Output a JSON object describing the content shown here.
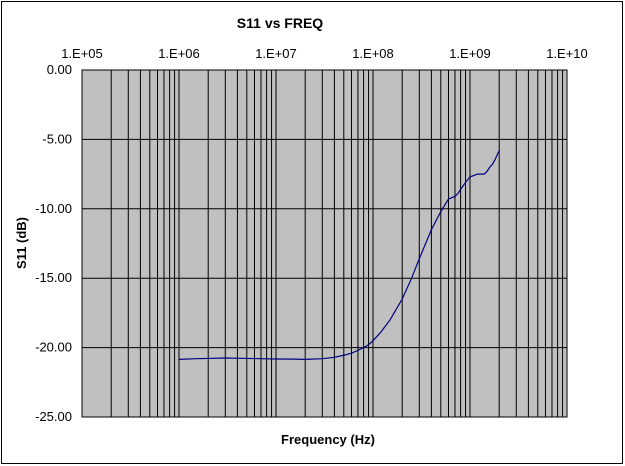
{
  "chart_data": {
    "type": "line",
    "title": "S11 vs FREQ",
    "xlabel": "Frequency (Hz)",
    "ylabel": "S11 (dB)",
    "x_scale": "log",
    "xlim": [
      100000,
      10000000000
    ],
    "ylim": [
      -25,
      0
    ],
    "x_tick_labels": [
      "1.E+05",
      "1.E+06",
      "1.E+07",
      "1.E+08",
      "1.E+09",
      "1.E+10"
    ],
    "y_tick_labels": [
      "0.00",
      "-5.00",
      "-10.00",
      "-15.00",
      "-20.00",
      "-25.00"
    ],
    "x_ticks": [
      100000,
      1000000,
      10000000,
      100000000,
      1000000000,
      10000000000
    ],
    "y_ticks": [
      0,
      -5,
      -10,
      -15,
      -20,
      -25
    ],
    "grid": true,
    "x_axis_position": "top",
    "plot_background": "#c0c0c0",
    "series": [
      {
        "color": "#000080",
        "x": [
          1000000,
          1500000,
          2000000,
          3000000,
          5000000,
          7000000,
          10000000,
          15000000,
          20000000,
          30000000,
          40000000,
          50000000,
          60000000,
          70000000,
          80000000,
          90000000,
          100000000,
          120000000,
          150000000,
          200000000,
          250000000,
          300000000,
          400000000,
          500000000,
          600000000,
          700000000,
          750000000,
          800000000,
          900000000,
          1000000000,
          1200000000,
          1400000000,
          1500000000,
          1600000000,
          1700000000,
          1800000000,
          2000000000
        ],
        "y": [
          -20.85,
          -20.8,
          -20.78,
          -20.75,
          -20.78,
          -20.8,
          -20.82,
          -20.83,
          -20.85,
          -20.8,
          -20.7,
          -20.55,
          -20.4,
          -20.2,
          -20.0,
          -19.8,
          -19.5,
          -18.9,
          -18.0,
          -16.5,
          -15.0,
          -13.6,
          -11.5,
          -10.2,
          -9.3,
          -9.1,
          -8.9,
          -8.6,
          -8.1,
          -7.7,
          -7.5,
          -7.5,
          -7.3,
          -7.0,
          -6.8,
          -6.5,
          -5.8
        ]
      }
    ]
  }
}
